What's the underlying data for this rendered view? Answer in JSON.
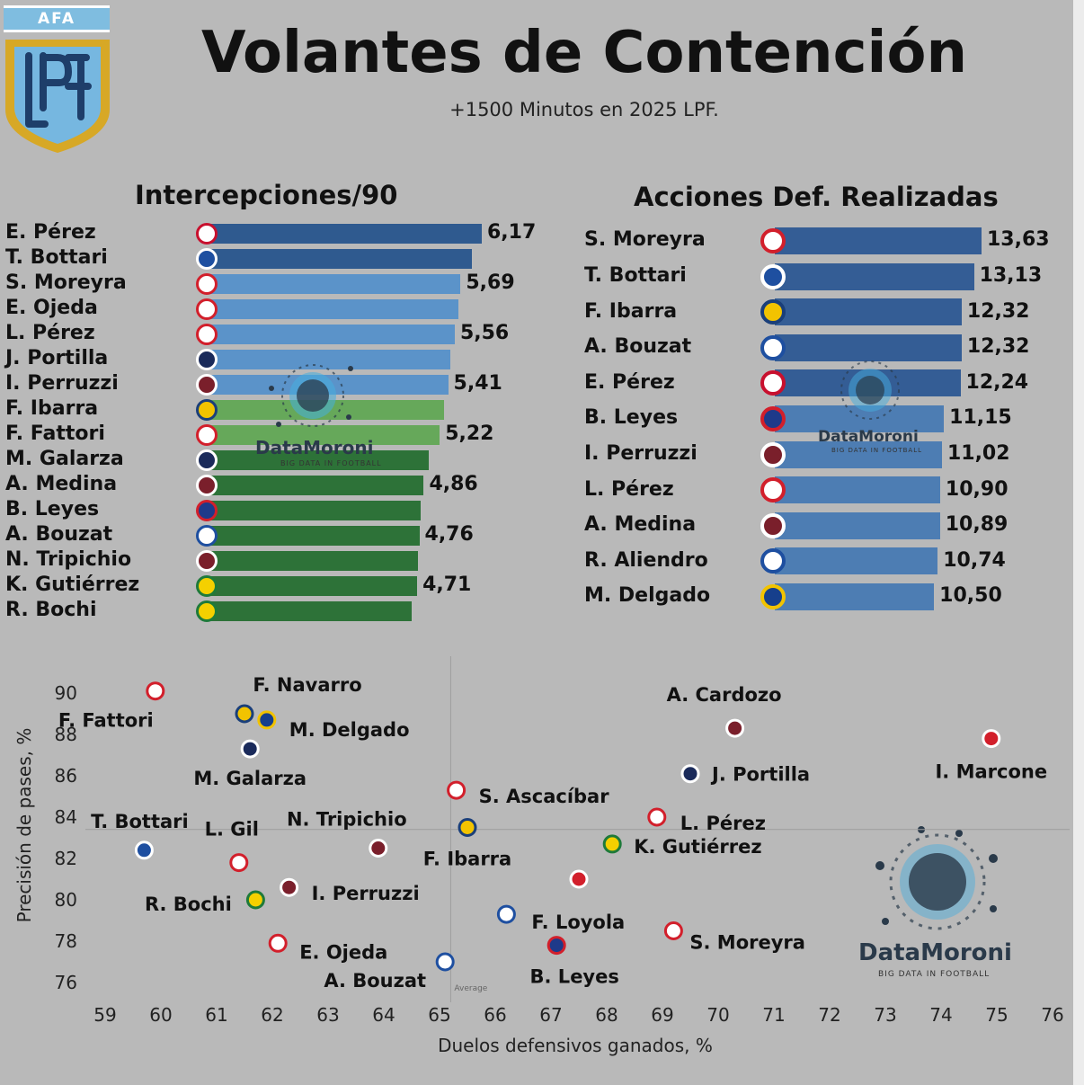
{
  "logo": {
    "text": "AFA",
    "icon": "lpf-shield-icon"
  },
  "header": {
    "title": "Volantes de Contención",
    "subtitle": "+1500 Minutos en 2025 LPF."
  },
  "watermark": {
    "name": "DataMoroni",
    "tagline": "BIG DATA IN FOOTBALL",
    "icon": "football-network-icon"
  },
  "colors": {
    "dark_blue": "#2f5a8f",
    "light_blue": "#5b93c9",
    "light_green": "#66a85a",
    "dark_green": "#2d7238",
    "acc_dark": "#345d95",
    "acc_light": "#4d7db3"
  },
  "chart_data": [
    {
      "type": "bar",
      "orientation": "horizontal",
      "title": "Intercepciones/90",
      "categories": [
        "E. Pérez",
        "T. Bottari",
        "S. Moreyra",
        "E. Ojeda",
        "L. Pérez",
        "J. Portilla",
        "I. Perruzzi",
        "F. Ibarra",
        "F. Fattori",
        "M. Galarza",
        "A. Medina",
        "B. Leyes",
        "A. Bouzat",
        "N. Tripichio",
        "K. Gutiérrez",
        "R. Bochi"
      ],
      "values": [
        6.17,
        5.95,
        5.69,
        5.65,
        5.56,
        5.45,
        5.41,
        5.32,
        5.22,
        4.98,
        4.86,
        4.8,
        4.76,
        4.73,
        4.71,
        4.58
      ],
      "value_labels": [
        "6,17",
        "",
        "5,69",
        "",
        "5,56",
        "",
        "5,41",
        "",
        "5,22",
        "",
        "4,86",
        "",
        "4,76",
        "",
        "4,71",
        ""
      ],
      "bar_colors": [
        "#2f5a8f",
        "#2f5a8f",
        "#5b93c9",
        "#5b93c9",
        "#5b93c9",
        "#5b93c9",
        "#5b93c9",
        "#66a85a",
        "#66a85a",
        "#2d7238",
        "#2d7238",
        "#2d7238",
        "#2d7238",
        "#2d7238",
        "#2d7238",
        "#2d7238"
      ],
      "club_icons": [
        "river-plate-icon",
        "independiente-rivadavia-icon",
        "instituto-icon",
        "huracan-icon",
        "huracan-icon",
        "talleres-icon",
        "lanus-icon",
        "rosario-central-icon",
        "argentinos-juniors-icon",
        "talleres-icon",
        "lanus-icon",
        "tigre-icon",
        "velez-icon",
        "lanus-icon",
        "defensa-y-justicia-icon",
        "aldosivi-icon"
      ]
    },
    {
      "type": "bar",
      "orientation": "horizontal",
      "title": "Acciones Def. Realizadas",
      "categories": [
        "S. Moreyra",
        "T. Bottari",
        "F. Ibarra",
        "A. Bouzat",
        "E. Pérez",
        "B. Leyes",
        "I. Perruzzi",
        "L. Pérez",
        "A. Medina",
        "R. Aliendro",
        "M. Delgado"
      ],
      "values": [
        13.63,
        13.13,
        12.32,
        12.32,
        12.24,
        11.15,
        11.02,
        10.9,
        10.89,
        10.74,
        10.5
      ],
      "value_labels": [
        "13,63",
        "13,13",
        "12,32",
        "12,32",
        "12,24",
        "11,15",
        "11,02",
        "10,90",
        "10,89",
        "10,74",
        "10,50"
      ],
      "bar_colors": [
        "#345d95",
        "#345d95",
        "#345d95",
        "#345d95",
        "#345d95",
        "#4d7db3",
        "#4d7db3",
        "#4d7db3",
        "#4d7db3",
        "#4d7db3",
        "#4d7db3"
      ],
      "club_icons": [
        "instituto-icon",
        "independiente-rivadavia-icon",
        "rosario-central-icon",
        "velez-icon",
        "river-plate-icon",
        "tigre-icon",
        "lanus-icon",
        "huracan-icon",
        "lanus-icon",
        "velez-icon",
        "boca-juniors-icon"
      ]
    },
    {
      "type": "scatter",
      "xlabel": "Duelos defensivos ganados, %",
      "ylabel": "Precisión de pases, %",
      "xlim": [
        59,
        76
      ],
      "ylim": [
        75.5,
        91
      ],
      "xticks": [
        59,
        60,
        61,
        62,
        63,
        64,
        65,
        66,
        67,
        68,
        69,
        70,
        71,
        72,
        73,
        74,
        75,
        76
      ],
      "yticks": [
        76,
        78,
        80,
        82,
        84,
        86,
        88,
        90
      ],
      "average": {
        "x": 65.2,
        "y": 83.4,
        "label": "Average"
      },
      "points": [
        {
          "name": "F. Fattori",
          "x": 59.9,
          "y": 90.1,
          "icon": "argentinos-juniors-icon"
        },
        {
          "name": "F. Navarro",
          "x": 61.5,
          "y": 89.0,
          "icon": "rosario-central-icon"
        },
        {
          "name": "M. Delgado",
          "x": 61.9,
          "y": 88.7,
          "icon": "boca-juniors-icon"
        },
        {
          "name": "M. Galarza",
          "x": 61.6,
          "y": 87.3,
          "icon": "talleres-icon"
        },
        {
          "name": "T. Bottari",
          "x": 59.7,
          "y": 82.4,
          "icon": "independiente-rivadavia-icon"
        },
        {
          "name": "L. Gil",
          "x": 61.4,
          "y": 81.8,
          "icon": "huracan-icon"
        },
        {
          "name": "N. Tripichio",
          "x": 63.9,
          "y": 82.5,
          "icon": "lanus-icon"
        },
        {
          "name": "R. Bochi",
          "x": 61.7,
          "y": 80.0,
          "icon": "aldosivi-icon"
        },
        {
          "name": "I. Perruzzi",
          "x": 62.3,
          "y": 80.6,
          "icon": "lanus-icon"
        },
        {
          "name": "E. Ojeda",
          "x": 62.1,
          "y": 77.9,
          "icon": "huracan-icon"
        },
        {
          "name": "A. Bouzat",
          "x": 65.1,
          "y": 77.0,
          "icon": "velez-icon"
        },
        {
          "name": "S. Ascacíbar",
          "x": 65.3,
          "y": 85.3,
          "icon": "estudiantes-icon"
        },
        {
          "name": "F. Ibarra",
          "x": 65.5,
          "y": 83.5,
          "icon": "rosario-central-icon"
        },
        {
          "name": "F. Loyola",
          "x": 66.2,
          "y": 79.3,
          "icon": "velez-icon"
        },
        {
          "name": "B. Leyes",
          "x": 67.1,
          "y": 77.8,
          "icon": "tigre-icon"
        },
        {
          "name": "",
          "x": 67.5,
          "y": 81.0,
          "icon": "independiente-icon"
        },
        {
          "name": "K. Gutiérrez",
          "x": 68.1,
          "y": 82.7,
          "icon": "defensa-y-justicia-icon"
        },
        {
          "name": "L. Pérez",
          "x": 68.9,
          "y": 84.0,
          "icon": "huracan-icon"
        },
        {
          "name": "S. Moreyra",
          "x": 69.2,
          "y": 78.5,
          "icon": "instituto-icon"
        },
        {
          "name": "J. Portilla",
          "x": 69.5,
          "y": 86.1,
          "icon": "talleres-icon"
        },
        {
          "name": "A. Cardozo",
          "x": 70.3,
          "y": 88.3,
          "icon": "lanus-icon"
        },
        {
          "name": "I. Marcone",
          "x": 74.9,
          "y": 87.8,
          "icon": "independiente-icon"
        }
      ]
    }
  ]
}
